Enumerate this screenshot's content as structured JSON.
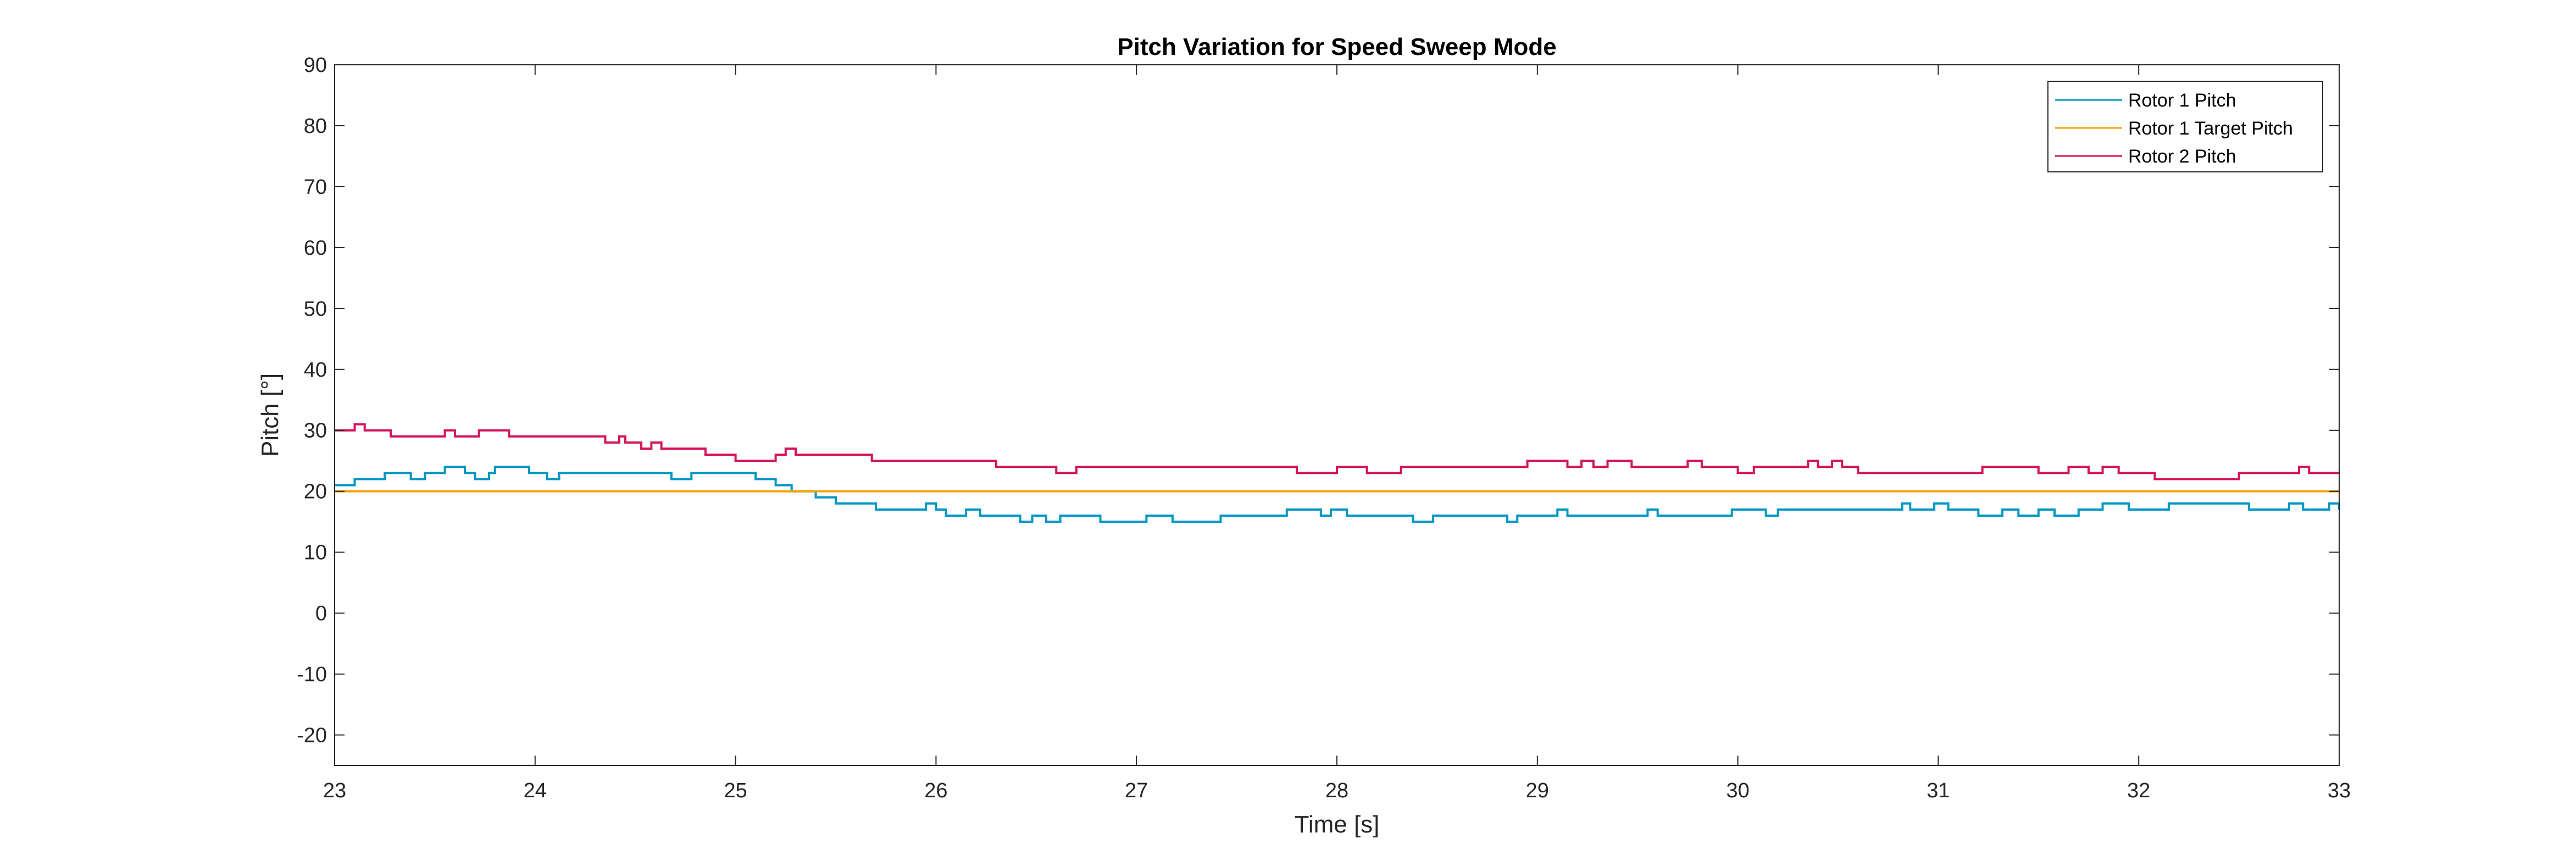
{
  "chart_data": {
    "type": "line",
    "title": "Pitch Variation for Speed Sweep Mode",
    "xlabel": "Time [s]",
    "ylabel": "Pitch [°]",
    "xlim": [
      23,
      33
    ],
    "ylim": [
      -25,
      90
    ],
    "xticks": [
      23,
      24,
      25,
      26,
      27,
      28,
      29,
      30,
      31,
      32,
      33
    ],
    "yticks": [
      -20,
      -10,
      0,
      10,
      20,
      30,
      40,
      50,
      60,
      70,
      80,
      90
    ],
    "grid": false,
    "legend_position": "top-right",
    "series": [
      {
        "name": "Rotor 1 Pitch",
        "color": "#0097c4",
        "points": [
          [
            23.0,
            21
          ],
          [
            23.1,
            22
          ],
          [
            23.25,
            23
          ],
          [
            23.38,
            22
          ],
          [
            23.45,
            23
          ],
          [
            23.55,
            24
          ],
          [
            23.65,
            23
          ],
          [
            23.7,
            22
          ],
          [
            23.77,
            23
          ],
          [
            23.8,
            24
          ],
          [
            23.97,
            23
          ],
          [
            24.06,
            22
          ],
          [
            24.12,
            23
          ],
          [
            24.68,
            22
          ],
          [
            24.78,
            23
          ],
          [
            25.1,
            22
          ],
          [
            25.2,
            21
          ],
          [
            25.28,
            20
          ],
          [
            25.4,
            19
          ],
          [
            25.5,
            18
          ],
          [
            25.7,
            17
          ],
          [
            25.95,
            18
          ],
          [
            26.0,
            17
          ],
          [
            26.05,
            16
          ],
          [
            26.15,
            17
          ],
          [
            26.22,
            16
          ],
          [
            26.42,
            15
          ],
          [
            26.48,
            16
          ],
          [
            26.55,
            15
          ],
          [
            26.62,
            16
          ],
          [
            26.82,
            15
          ],
          [
            27.05,
            16
          ],
          [
            27.18,
            15
          ],
          [
            27.42,
            16
          ],
          [
            27.75,
            17
          ],
          [
            27.92,
            16
          ],
          [
            27.97,
            17
          ],
          [
            28.05,
            16
          ],
          [
            28.38,
            15
          ],
          [
            28.48,
            16
          ],
          [
            28.85,
            15
          ],
          [
            28.9,
            16
          ],
          [
            29.1,
            17
          ],
          [
            29.15,
            16
          ],
          [
            29.55,
            17
          ],
          [
            29.6,
            16
          ],
          [
            29.97,
            17
          ],
          [
            30.14,
            16
          ],
          [
            30.2,
            17
          ],
          [
            30.82,
            18
          ],
          [
            30.86,
            17
          ],
          [
            30.98,
            18
          ],
          [
            31.05,
            17
          ],
          [
            31.2,
            16
          ],
          [
            31.32,
            17
          ],
          [
            31.4,
            16
          ],
          [
            31.5,
            17
          ],
          [
            31.58,
            16
          ],
          [
            31.7,
            17
          ],
          [
            31.82,
            18
          ],
          [
            31.95,
            17
          ],
          [
            32.15,
            18
          ],
          [
            32.55,
            17
          ],
          [
            32.75,
            18
          ],
          [
            32.82,
            17
          ],
          [
            32.95,
            18
          ],
          [
            33.0,
            17
          ]
        ]
      },
      {
        "name": "Rotor 1 Target Pitch",
        "color": "#f0a30a",
        "points": [
          [
            23.0,
            20
          ],
          [
            33.0,
            20
          ]
        ]
      },
      {
        "name": "Rotor 2 Pitch",
        "color": "#d4145a",
        "points": [
          [
            23.0,
            30
          ],
          [
            23.1,
            31
          ],
          [
            23.15,
            30
          ],
          [
            23.28,
            29
          ],
          [
            23.55,
            30
          ],
          [
            23.6,
            29
          ],
          [
            23.72,
            30
          ],
          [
            23.87,
            29
          ],
          [
            24.18,
            29
          ],
          [
            24.2,
            29
          ],
          [
            24.35,
            28
          ],
          [
            24.42,
            29
          ],
          [
            24.45,
            28
          ],
          [
            24.53,
            27
          ],
          [
            24.58,
            28
          ],
          [
            24.63,
            27
          ],
          [
            24.82,
            27
          ],
          [
            24.85,
            26
          ],
          [
            24.95,
            26
          ],
          [
            25.0,
            25
          ],
          [
            25.2,
            26
          ],
          [
            25.25,
            27
          ],
          [
            25.3,
            26
          ],
          [
            25.68,
            25
          ],
          [
            26.3,
            24
          ],
          [
            26.6,
            23
          ],
          [
            26.7,
            24
          ],
          [
            27.8,
            23
          ],
          [
            28.0,
            24
          ],
          [
            28.15,
            23
          ],
          [
            28.32,
            24
          ],
          [
            28.9,
            24
          ],
          [
            28.95,
            25
          ],
          [
            29.15,
            24
          ],
          [
            29.22,
            25
          ],
          [
            29.28,
            24
          ],
          [
            29.35,
            25
          ],
          [
            29.47,
            24
          ],
          [
            29.75,
            25
          ],
          [
            29.82,
            24
          ],
          [
            30.0,
            23
          ],
          [
            30.08,
            24
          ],
          [
            30.35,
            25
          ],
          [
            30.4,
            24
          ],
          [
            30.47,
            25
          ],
          [
            30.52,
            24
          ],
          [
            30.6,
            23
          ],
          [
            31.22,
            24
          ],
          [
            31.5,
            23
          ],
          [
            31.65,
            24
          ],
          [
            31.75,
            23
          ],
          [
            31.82,
            24
          ],
          [
            31.9,
            23
          ],
          [
            32.08,
            22
          ],
          [
            32.5,
            23
          ],
          [
            32.8,
            24
          ],
          [
            32.85,
            23
          ],
          [
            33.0,
            23
          ]
        ]
      }
    ]
  }
}
